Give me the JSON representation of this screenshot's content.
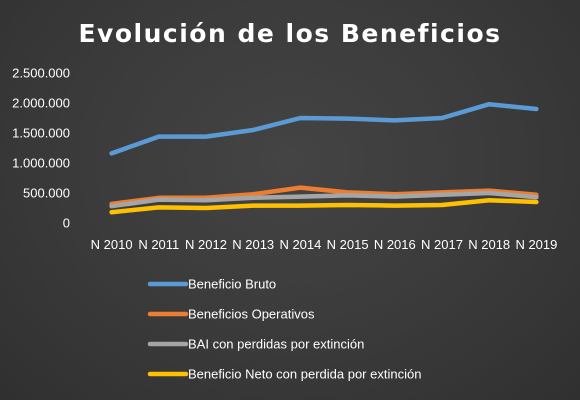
{
  "chart_data": {
    "type": "line",
    "title": "Evolución de los Beneficios",
    "xlabel": "",
    "ylabel": "",
    "categories": [
      "N 2010",
      "N 2011",
      "N 2012",
      "N 2013",
      "N 2014",
      "N 2015",
      "N 2016",
      "N 2017",
      "N 2018",
      "N 2019"
    ],
    "ylim": [
      0,
      2500000
    ],
    "yticks": [
      0,
      500000,
      1000000,
      1500000,
      2000000,
      2500000
    ],
    "ytick_labels": [
      "0",
      "500.000",
      "1.000.000",
      "1.500.000",
      "2.000.000",
      "2.500.000"
    ],
    "grid": false,
    "legend_position": "bottom",
    "series": [
      {
        "name": "Beneficio Bruto",
        "color": "#5b9bd5",
        "values": [
          1160000,
          1440000,
          1440000,
          1550000,
          1750000,
          1740000,
          1710000,
          1750000,
          1980000,
          1900000
        ]
      },
      {
        "name": "Beneficios Operativos",
        "color": "#ed7d31",
        "values": [
          320000,
          420000,
          420000,
          480000,
          590000,
          510000,
          480000,
          510000,
          540000,
          470000
        ]
      },
      {
        "name": "BAI con perdidas por extinción",
        "color": "#a5a5a5",
        "values": [
          280000,
          390000,
          380000,
          420000,
          440000,
          460000,
          440000,
          470000,
          500000,
          430000
        ]
      },
      {
        "name": "Beneficio Neto con perdida por extinción",
        "color": "#ffc000",
        "values": [
          180000,
          260000,
          250000,
          290000,
          290000,
          300000,
          290000,
          300000,
          380000,
          350000
        ]
      }
    ]
  }
}
